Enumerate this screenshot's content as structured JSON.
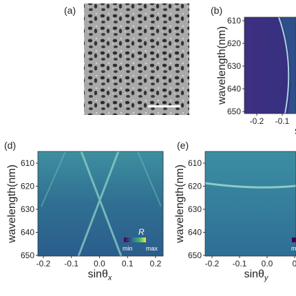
{
  "panels": {
    "a": {
      "label": "(a)"
    },
    "b": {
      "label": "(b)",
      "y_label": "wavelength(nm)",
      "y_ticks": [
        "610",
        "620",
        "630",
        "640",
        "650"
      ],
      "x_ticks": [
        "-0.2",
        "-0.1"
      ],
      "x_label": "s"
    },
    "d": {
      "label": "(d)",
      "y_label": "wavelength(nm)",
      "y_ticks": [
        "610",
        "620",
        "630",
        "640",
        "650"
      ],
      "x_ticks": [
        "-0.2",
        "-0.1",
        "0.0",
        "0.1",
        "0.2"
      ],
      "x_label": {
        "main": "sinθ",
        "sub": "x"
      },
      "colorbar": {
        "title": "R",
        "min": "min",
        "max": "max"
      }
    },
    "e": {
      "label": "(e)",
      "y_label": "wavelength(nm)",
      "y_ticks": [
        "610",
        "620",
        "630",
        "640",
        "650"
      ],
      "x_ticks": [
        "-0.2",
        "-0.1",
        "0.0",
        "0"
      ],
      "x_label": {
        "main": "sinθ",
        "sub": "y"
      },
      "colorbar": {
        "min": "m"
      }
    }
  }
}
